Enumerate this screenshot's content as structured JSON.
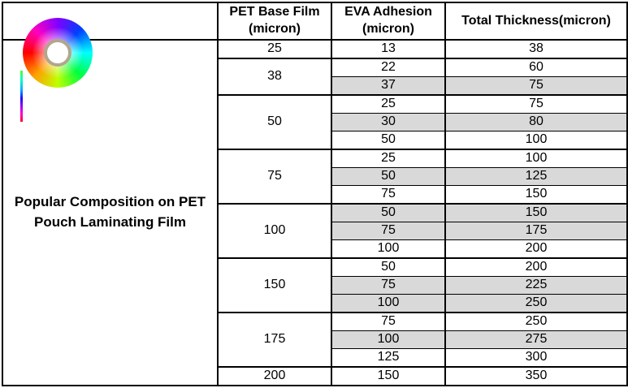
{
  "colors": {
    "background": "#ffffff",
    "border": "#000000",
    "shaded_row": "#d9d9d9",
    "logo_ring": "#b3a68c"
  },
  "logo": {
    "icon": "rainbow-film-roll"
  },
  "title": {
    "line1": "Popular Composition on PET",
    "line2": "Pouch Laminating Film"
  },
  "table": {
    "headers": {
      "pet_line1": "PET Base Film",
      "pet_line2": "(micron)",
      "eva_line1": "EVA Adhesion",
      "eva_line2": "(micron)",
      "total": "Total Thickness(micron)"
    },
    "groups": [
      {
        "pet": "25",
        "rows": [
          {
            "eva": "13",
            "total": "38",
            "shaded": false
          }
        ]
      },
      {
        "pet": "38",
        "rows": [
          {
            "eva": "22",
            "total": "60",
            "shaded": false
          },
          {
            "eva": "37",
            "total": "75",
            "shaded": true
          }
        ]
      },
      {
        "pet": "50",
        "rows": [
          {
            "eva": "25",
            "total": "75",
            "shaded": false
          },
          {
            "eva": "30",
            "total": "80",
            "shaded": true
          },
          {
            "eva": "50",
            "total": "100",
            "shaded": false
          }
        ]
      },
      {
        "pet": "75",
        "rows": [
          {
            "eva": "25",
            "total": "100",
            "shaded": false
          },
          {
            "eva": "50",
            "total": "125",
            "shaded": true
          },
          {
            "eva": "75",
            "total": "150",
            "shaded": false
          }
        ]
      },
      {
        "pet": "100",
        "rows": [
          {
            "eva": "50",
            "total": "150",
            "shaded": true
          },
          {
            "eva": "75",
            "total": "175",
            "shaded": true
          },
          {
            "eva": "100",
            "total": "200",
            "shaded": false
          }
        ]
      },
      {
        "pet": "150",
        "rows": [
          {
            "eva": "50",
            "total": "200",
            "shaded": false
          },
          {
            "eva": "75",
            "total": "225",
            "shaded": true
          },
          {
            "eva": "100",
            "total": "250",
            "shaded": true
          }
        ]
      },
      {
        "pet": "175",
        "rows": [
          {
            "eva": "75",
            "total": "250",
            "shaded": false
          },
          {
            "eva": "100",
            "total": "275",
            "shaded": true
          },
          {
            "eva": "125",
            "total": "300",
            "shaded": false
          }
        ]
      },
      {
        "pet": "200",
        "rows": [
          {
            "eva": "150",
            "total": "350",
            "shaded": false
          }
        ]
      }
    ]
  }
}
